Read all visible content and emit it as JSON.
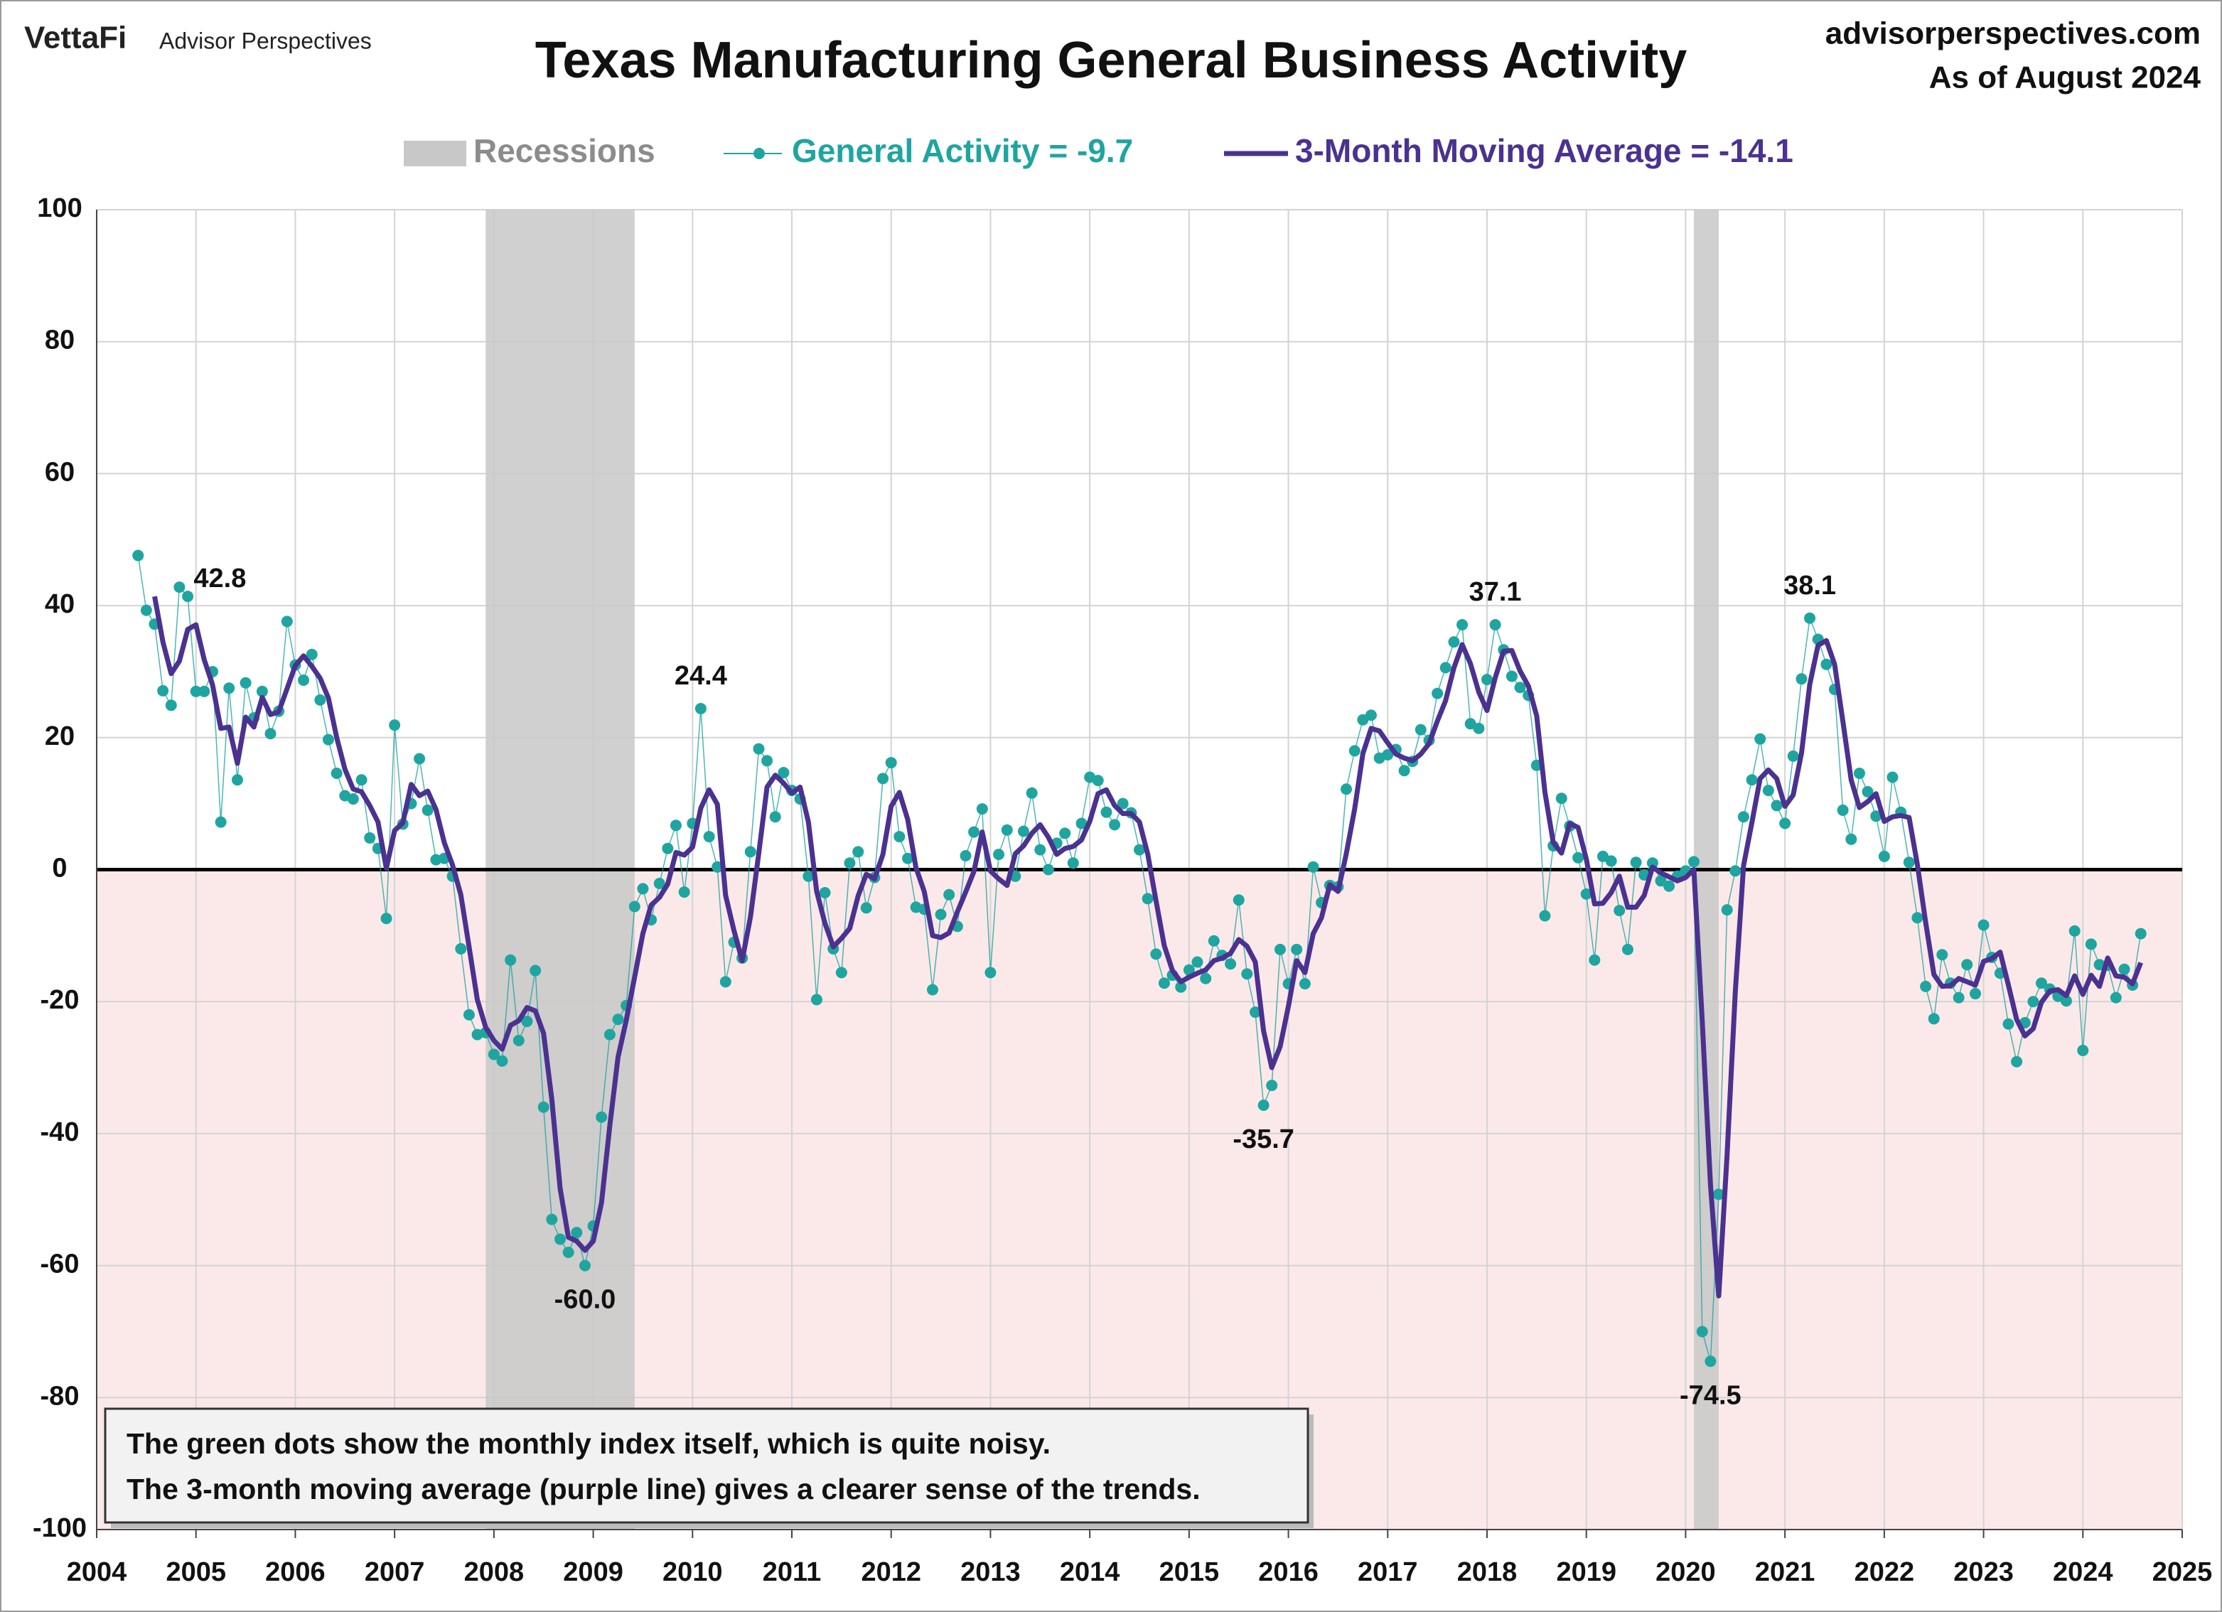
{
  "header": {
    "brand": "VettaFi",
    "publisher": "Advisor Perspectives",
    "site": "advisorperspectives.com",
    "as_of": "As of August 2024"
  },
  "note": [
    "The green dots show the monthly  index itself, which is quite noisy.",
    "The 3-month moving average (purple line) gives a clearer sense of the trends."
  ],
  "chart_data": {
    "type": "line",
    "title": "Texas Manufacturing General Business Activity",
    "recessions_label": "Recessions",
    "recessions_color": "#c8c8c8",
    "recessions": [
      [
        2007.917,
        2009.417
      ],
      [
        2020.083,
        2020.333
      ]
    ],
    "negative_region_color": "#fbe9e9",
    "negative_tick_color": "#e00000",
    "grid": true,
    "xlim": [
      2004,
      2025
    ],
    "xticks": [
      2004,
      2005,
      2006,
      2007,
      2008,
      2009,
      2010,
      2011,
      2012,
      2013,
      2014,
      2015,
      2016,
      2017,
      2018,
      2019,
      2020,
      2021,
      2022,
      2023,
      2024,
      2025
    ],
    "ylim": [
      -100,
      100
    ],
    "yticks": [
      -100,
      -80,
      -60,
      -40,
      -20,
      0,
      20,
      40,
      60,
      80,
      100
    ],
    "x": [
      2004.417,
      2004.5,
      2004.583,
      2004.667,
      2004.75,
      2004.833,
      2004.917,
      2005,
      2005.083,
      2005.167,
      2005.25,
      2005.333,
      2005.417,
      2005.5,
      2005.583,
      2005.667,
      2005.75,
      2005.833,
      2005.917,
      2006,
      2006.083,
      2006.167,
      2006.25,
      2006.333,
      2006.417,
      2006.5,
      2006.583,
      2006.667,
      2006.75,
      2006.833,
      2006.917,
      2007,
      2007.083,
      2007.167,
      2007.25,
      2007.333,
      2007.417,
      2007.5,
      2007.583,
      2007.667,
      2007.75,
      2007.833,
      2007.917,
      2008,
      2008.083,
      2008.167,
      2008.25,
      2008.333,
      2008.417,
      2008.5,
      2008.583,
      2008.667,
      2008.75,
      2008.833,
      2008.917,
      2009,
      2009.083,
      2009.167,
      2009.25,
      2009.333,
      2009.417,
      2009.5,
      2009.583,
      2009.667,
      2009.75,
      2009.833,
      2009.917,
      2010,
      2010.083,
      2010.167,
      2010.25,
      2010.333,
      2010.417,
      2010.5,
      2010.583,
      2010.667,
      2010.75,
      2010.833,
      2010.917,
      2011,
      2011.083,
      2011.167,
      2011.25,
      2011.333,
      2011.417,
      2011.5,
      2011.583,
      2011.667,
      2011.75,
      2011.833,
      2011.917,
      2012,
      2012.083,
      2012.167,
      2012.25,
      2012.333,
      2012.417,
      2012.5,
      2012.583,
      2012.667,
      2012.75,
      2012.833,
      2012.917,
      2013,
      2013.083,
      2013.167,
      2013.25,
      2013.333,
      2013.417,
      2013.5,
      2013.583,
      2013.667,
      2013.75,
      2013.833,
      2013.917,
      2014,
      2014.083,
      2014.167,
      2014.25,
      2014.333,
      2014.417,
      2014.5,
      2014.583,
      2014.667,
      2014.75,
      2014.833,
      2014.917,
      2015,
      2015.083,
      2015.167,
      2015.25,
      2015.333,
      2015.417,
      2015.5,
      2015.583,
      2015.667,
      2015.75,
      2015.833,
      2015.917,
      2016,
      2016.083,
      2016.167,
      2016.25,
      2016.333,
      2016.417,
      2016.5,
      2016.583,
      2016.667,
      2016.75,
      2016.833,
      2016.917,
      2017,
      2017.083,
      2017.167,
      2017.25,
      2017.333,
      2017.417,
      2017.5,
      2017.583,
      2017.667,
      2017.75,
      2017.833,
      2017.917,
      2018,
      2018.083,
      2018.167,
      2018.25,
      2018.333,
      2018.417,
      2018.5,
      2018.583,
      2018.667,
      2018.75,
      2018.833,
      2018.917,
      2019,
      2019.083,
      2019.167,
      2019.25,
      2019.333,
      2019.417,
      2019.5,
      2019.583,
      2019.667,
      2019.75,
      2019.833,
      2019.917,
      2020,
      2020.083,
      2020.167,
      2020.25,
      2020.333,
      2020.417,
      2020.5,
      2020.583,
      2020.667,
      2020.75,
      2020.833,
      2020.917,
      2021,
      2021.083,
      2021.167,
      2021.25,
      2021.333,
      2021.417,
      2021.5,
      2021.583,
      2021.667,
      2021.75,
      2021.833,
      2021.917,
      2022,
      2022.083,
      2022.167,
      2022.25,
      2022.333,
      2022.417,
      2022.5,
      2022.583,
      2022.667,
      2022.75,
      2022.833,
      2022.917,
      2023,
      2023.083,
      2023.167,
      2023.25,
      2023.333,
      2023.417,
      2023.5,
      2023.583,
      2023.667,
      2023.75,
      2023.833,
      2023.917,
      2024,
      2024.083,
      2024.167,
      2024.25,
      2024.333,
      2024.417,
      2024.5,
      2024.583
    ],
    "series": [
      {
        "name": "General Activity = -9.7",
        "color": "#1fa5a0",
        "style": "dots",
        "values": [
          47.6,
          39.3,
          37.2,
          27.1,
          24.9,
          42.8,
          41.4,
          27,
          27,
          30,
          7.2,
          27.5,
          13.6,
          28.3,
          23,
          27,
          20.6,
          24,
          37.6,
          31,
          28.7,
          32.6,
          25.7,
          19.7,
          14.6,
          11.2,
          10.7,
          13.6,
          4.8,
          3.2,
          -7.4,
          21.9,
          6.9,
          10,
          16.8,
          9,
          1.5,
          1.7,
          -1,
          -12,
          -22,
          -25,
          -24.7,
          -28,
          -29,
          -13.7,
          -25.9,
          -23,
          -15.3,
          -36,
          -53,
          -56,
          -58,
          -55,
          -60,
          -54,
          -37.5,
          -25,
          -22.7,
          -20.6,
          -5.6,
          -2.9,
          -7.6,
          -2.1,
          3.2,
          6.7,
          -3.4,
          7,
          24.4,
          5,
          0.4,
          -17,
          -11,
          -13.4,
          2.7,
          18.3,
          16.5,
          8,
          14.7,
          12,
          10.7,
          -1,
          -19.7,
          -3.5,
          -12,
          -15.6,
          1,
          2.7,
          -5.8,
          -1.2,
          13.8,
          16.2,
          5,
          1.7,
          -5.7,
          -6,
          -18.2,
          -6.8,
          -3.8,
          -8.6,
          2.1,
          5.7,
          9.2,
          -15.6,
          2.3,
          6,
          -1,
          5.8,
          11.6,
          3,
          0,
          4,
          5.5,
          1,
          7,
          14,
          13.5,
          8.7,
          6.8,
          10,
          8.6,
          3,
          -4.4,
          -12.8,
          -17.2,
          -16,
          -17.8,
          -15.2,
          -14,
          -16.5,
          -10.8,
          -13,
          -14.3,
          -4.6,
          -15.8,
          -21.6,
          -35.7,
          -32.7,
          -12.1,
          -17.3,
          -12.1,
          -17.3,
          0.4,
          -5,
          -2.4,
          -2.6,
          12.2,
          18,
          22.7,
          23.4,
          16.9,
          17.4,
          18.2,
          15,
          16.4,
          21.2,
          19.6,
          26.7,
          30.6,
          34.5,
          37.1,
          22.1,
          21.4,
          28.8,
          37.1,
          33.3,
          29.3,
          27.6,
          26.4,
          15.8,
          -7,
          3.6,
          10.8,
          6.6,
          1.8,
          -3.7,
          -13.7,
          2,
          1.3,
          -6.2,
          -12.1,
          1.1,
          -0.8,
          1,
          -1.7,
          -2.5,
          -1,
          -0.2,
          1.2,
          -70,
          -74.5,
          -49.2,
          -6.1,
          -0.2,
          8,
          13.6,
          19.8,
          12,
          9.7,
          7,
          17.2,
          28.9,
          38.1,
          34.9,
          31.1,
          27.3,
          9,
          4.6,
          14.6,
          11.8,
          8.1,
          2,
          14,
          8.7,
          1.1,
          -7.3,
          -17.7,
          -22.6,
          -12.9,
          -17.2,
          -19.4,
          -14.4,
          -18.8,
          -8.4,
          -13.3,
          -15.7,
          -23.4,
          -29.1,
          -23.2,
          -20,
          -17.2,
          -18.1,
          -19.2,
          -19.9,
          -9.3,
          -27.4,
          -11.3,
          -14.4,
          -14.5,
          -19.4,
          -15.1,
          -17.5,
          -9.7
        ],
        "value_labels": [
          null,
          null,
          null,
          null,
          null,
          "42.8",
          null,
          null,
          null,
          null,
          null,
          null,
          null,
          null,
          null,
          null,
          null,
          null,
          null,
          null,
          null,
          null,
          null,
          null,
          null,
          null,
          null,
          null,
          null,
          null,
          null,
          null,
          null,
          null,
          null,
          null,
          null,
          null,
          null,
          null,
          null,
          null,
          null,
          null,
          null,
          null,
          null,
          null,
          null,
          null,
          null,
          null,
          null,
          null,
          "-60.0",
          null,
          null,
          null,
          null,
          null,
          null,
          null,
          null,
          null,
          null,
          null,
          null,
          null,
          "24.4",
          null,
          null,
          null,
          null,
          null,
          null,
          null,
          null,
          null,
          null,
          null,
          null,
          null,
          null,
          null,
          null,
          null,
          null,
          null,
          null,
          null,
          null,
          null,
          null,
          null,
          null,
          null,
          null,
          null,
          null,
          null,
          null,
          null,
          null,
          null,
          null,
          null,
          null,
          null,
          null,
          null,
          null,
          null,
          null,
          null,
          null,
          null,
          null,
          null,
          null,
          null,
          null,
          null,
          null,
          null,
          null,
          null,
          null,
          null,
          null,
          null,
          null,
          null,
          null,
          null,
          null,
          null,
          "-35.7",
          null,
          null,
          null,
          null,
          null,
          null,
          null,
          null,
          null,
          null,
          null,
          null,
          null,
          null,
          null,
          null,
          null,
          null,
          null,
          null,
          null,
          null,
          null,
          null,
          null,
          null,
          null,
          "37.1",
          null,
          null,
          null,
          null,
          null,
          null,
          null,
          null,
          null,
          null,
          null,
          null,
          null,
          null,
          null,
          null,
          null,
          null,
          null,
          null,
          null,
          null,
          null,
          null,
          null,
          "-74.5",
          null,
          null,
          null,
          null,
          null,
          null,
          null,
          null,
          null,
          null,
          null,
          "38.1",
          null,
          null,
          null,
          null,
          null,
          null,
          null,
          null,
          null,
          null,
          null,
          null,
          null,
          null,
          null,
          null,
          null,
          null,
          null,
          null,
          null,
          null,
          null,
          null,
          null,
          null,
          null,
          null,
          null,
          null,
          null,
          null,
          null,
          null,
          null,
          null,
          null,
          null,
          null,
          null
        ]
      },
      {
        "name": "3-Month Moving Average = -14.1",
        "color": "#4b3190",
        "style": "line",
        "values": [
          null,
          null,
          41.4,
          34.5,
          29.7,
          31.6,
          36.4,
          37.1,
          31.8,
          28,
          21.4,
          21.6,
          16.1,
          23.1,
          21.6,
          26.1,
          23.5,
          23.9,
          27.4,
          30.9,
          32.4,
          30.8,
          29,
          26,
          20,
          15.2,
          12.2,
          11.8,
          9.7,
          7.2,
          0.2,
          5.9,
          7.1,
          12.9,
          11.2,
          11.9,
          9.1,
          4.1,
          0.7,
          -3.8,
          -11.7,
          -19.7,
          -23.9,
          -25.9,
          -27.2,
          -23.6,
          -22.9,
          -20.9,
          -21.4,
          -24.8,
          -34.8,
          -48.3,
          -55.7,
          -56.3,
          -57.7,
          -56.3,
          -50.5,
          -38.8,
          -28.4,
          -22.8,
          -16.3,
          -9.7,
          -5.4,
          -4.2,
          -2.2,
          2.6,
          2.2,
          3.4,
          9.3,
          12.1,
          9.9,
          -3.9,
          -9.2,
          -13.8,
          -7.2,
          2.5,
          12.5,
          14.3,
          13.1,
          11.6,
          12.5,
          7.2,
          -3.3,
          -8.1,
          -11.7,
          -10.4,
          -8.9,
          -4,
          -0.7,
          -1.4,
          2.3,
          9.6,
          11.7,
          7.6,
          0.3,
          -3.3,
          -10,
          -10.3,
          -9.6,
          -6.4,
          -3.4,
          -0.3,
          5.7,
          -0.2,
          -1.4,
          -2.4,
          2.4,
          3.6,
          5.5,
          6.8,
          4.9,
          2.3,
          3.2,
          3.5,
          4.5,
          7.3,
          11.5,
          12.1,
          9.7,
          8.5,
          8.5,
          7.2,
          2.4,
          -4.7,
          -11.5,
          -15.3,
          -17,
          -16.3,
          -15.7,
          -15.2,
          -13.8,
          -13.4,
          -12.7,
          -10.6,
          -11.6,
          -14,
          -24.4,
          -30,
          -26.8,
          -20.7,
          -13.8,
          -15.6,
          -9.7,
          -7.3,
          -2.3,
          -3.3,
          2.4,
          9.2,
          17.6,
          21.4,
          21,
          19.2,
          17.5,
          16.9,
          16.5,
          17.5,
          19.1,
          22.5,
          25.6,
          30.6,
          34.1,
          31.2,
          26.9,
          24.1,
          29.1,
          33.1,
          33.2,
          30.1,
          27.8,
          23.3,
          11.7,
          4.1,
          2.5,
          7,
          6.4,
          1.6,
          -5.2,
          -5.1,
          -3.5,
          -1,
          -5.7,
          -5.7,
          -3.9,
          0.4,
          -0.5,
          -1.1,
          -1.7,
          -1.2,
          0,
          -23,
          -47.8,
          -64.6,
          -43.3,
          -18.5,
          0.6,
          7.1,
          13.8,
          15.1,
          13.8,
          9.6,
          11.3,
          17.7,
          28.1,
          34,
          34.7,
          31.1,
          22.5,
          13.6,
          9.4,
          10.3,
          11.5,
          7.3,
          8,
          8.2,
          7.9,
          0.8,
          -8,
          -15.9,
          -17.7,
          -17.6,
          -16.5,
          -17,
          -17.5,
          -13.9,
          -13.5,
          -12.5,
          -17.5,
          -22.7,
          -25.2,
          -24.1,
          -20.1,
          -18.4,
          -18.2,
          -19.1,
          -16.1,
          -18.9,
          -16,
          -17.7,
          -13.4,
          -16.1,
          -16.3,
          -17.3,
          -14.1
        ]
      }
    ]
  }
}
